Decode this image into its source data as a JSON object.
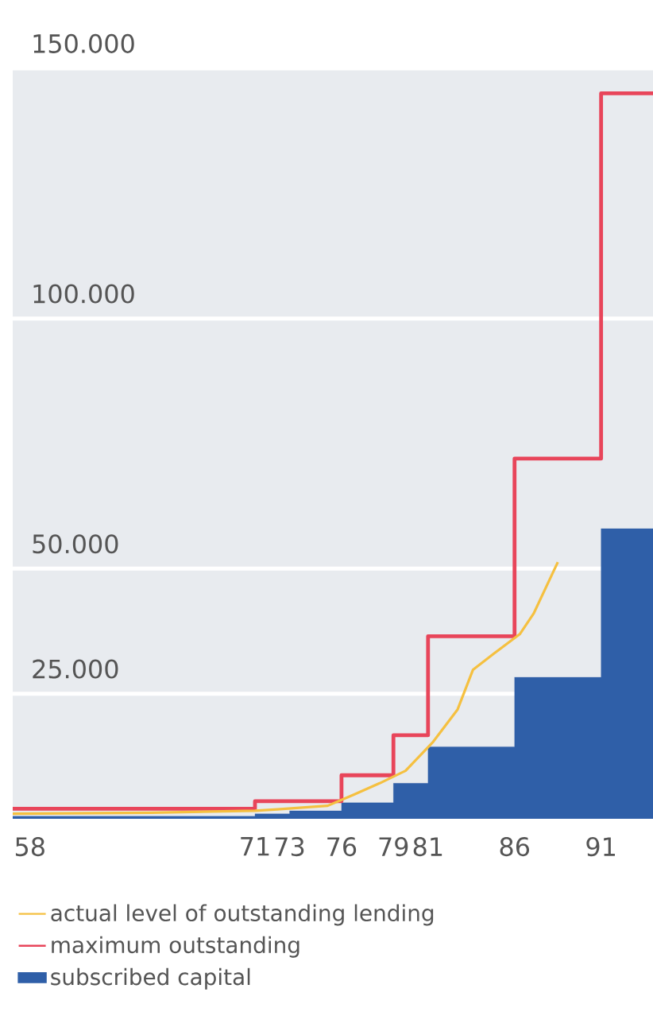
{
  "chart_data": {
    "type": "step",
    "x": [
      57,
      71,
      76,
      79,
      81,
      86,
      91,
      94
    ],
    "series": [
      {
        "name": "actual level of outstanding lending",
        "type": "line",
        "color": "#f5c040",
        "x": [
          57,
          65,
          71,
          72.3,
          75.2,
          76.7,
          78.2,
          79.7,
          81.3,
          82.7,
          83.6,
          84.8,
          86.3,
          87.1,
          88.5
        ],
        "values": [
          1000,
          1200,
          1600,
          1900,
          2600,
          4800,
          7100,
          9600,
          15400,
          21800,
          29800,
          33000,
          36900,
          41000,
          51300
        ]
      },
      {
        "name": "maximum outstanding",
        "color": "#e8455a",
        "values": [
          2000,
          3500,
          8700,
          16700,
          36500,
          72000,
          145000,
          145000
        ]
      },
      {
        "name": "subscribed capital",
        "type": "area",
        "color": "#2f5fa8",
        "x": [
          57,
          71,
          73,
          76,
          79,
          81,
          86,
          91,
          94
        ],
        "values": [
          500,
          1000,
          1600,
          3200,
          7100,
          14400,
          28300,
          58000,
          58000
        ]
      }
    ],
    "xlim": [
      57,
      94
    ],
    "xticks": [
      58,
      71,
      73,
      76,
      79,
      81,
      86,
      91
    ],
    "ylim": [
      0,
      150000
    ],
    "yticks": [
      {
        "value": 25000,
        "label": "25.000"
      },
      {
        "value": 50000,
        "label": "50.000"
      },
      {
        "value": 100000,
        "label": "100.000"
      },
      {
        "value": 150000,
        "label": "150.000"
      }
    ],
    "grid": "y",
    "legend": "bottom"
  }
}
